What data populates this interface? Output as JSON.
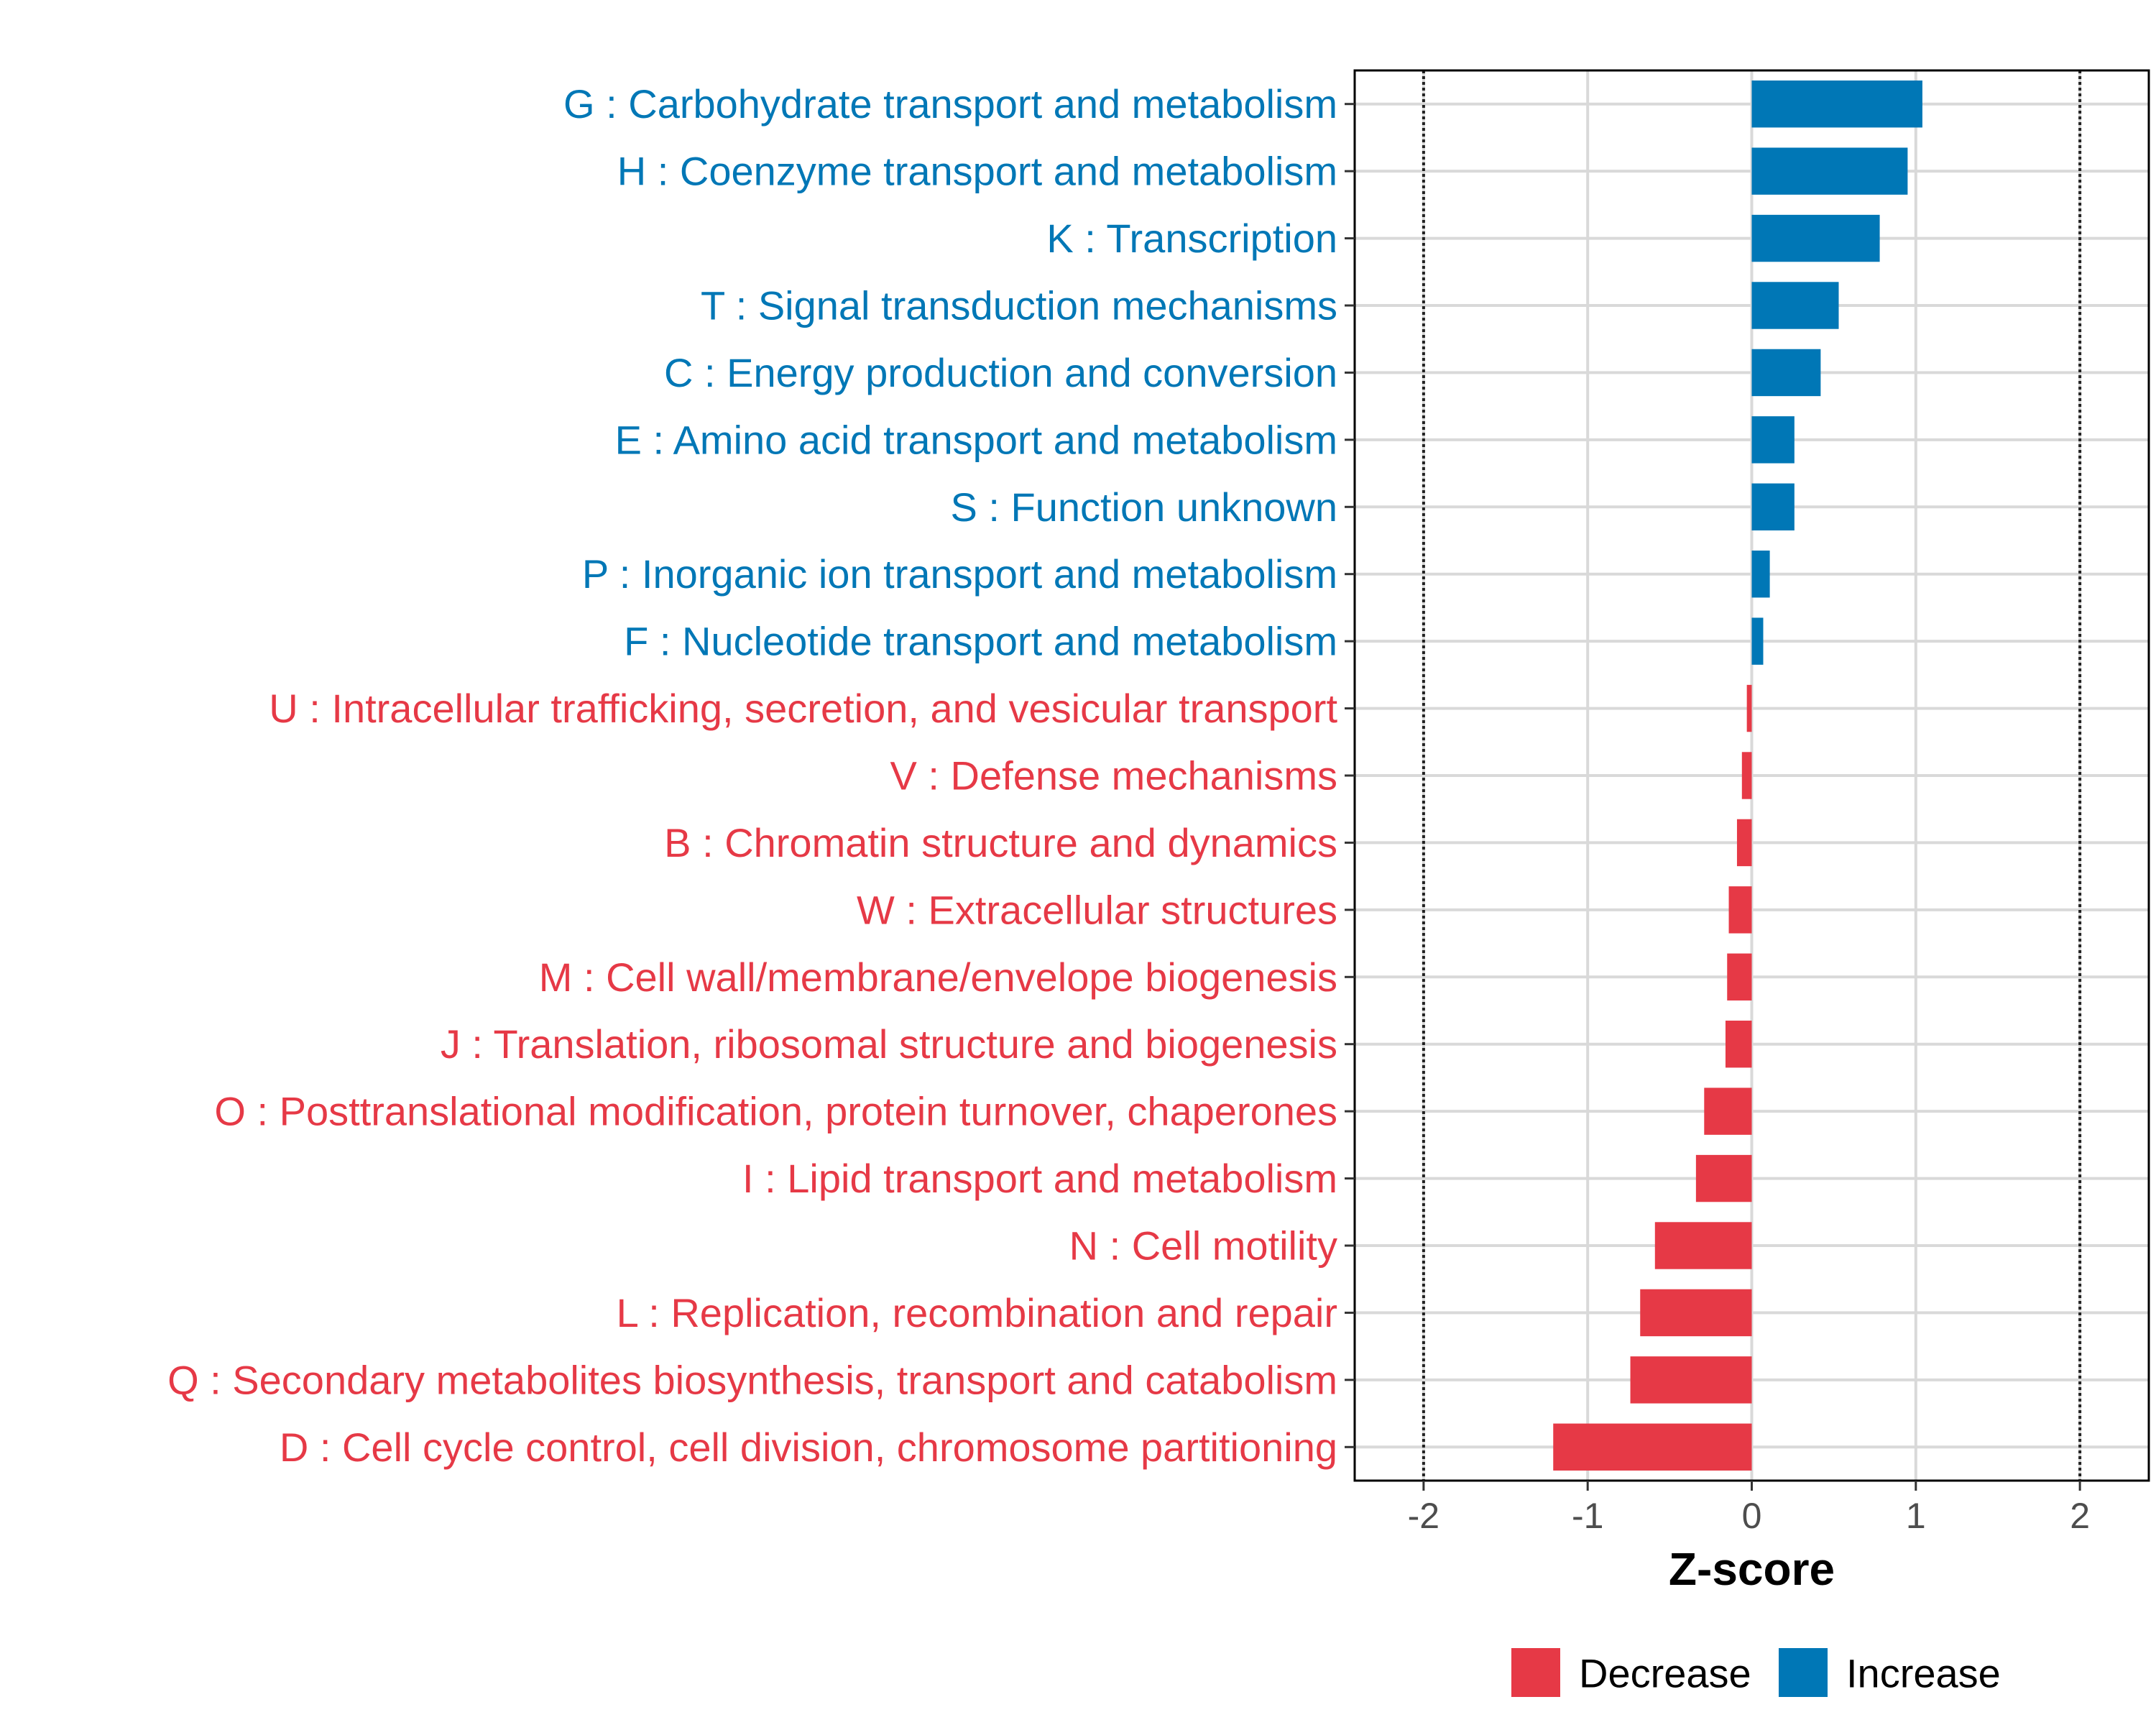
{
  "chart_data": {
    "type": "bar",
    "orientation": "horizontal",
    "title": "",
    "xlabel": "Z-score",
    "ylabel": "",
    "xlim": [
      -2.42,
      2.42
    ],
    "xticks": [
      -2,
      -1,
      0,
      1,
      2
    ],
    "xtick_labels": [
      "-2",
      "-1",
      "0",
      "1",
      "2"
    ],
    "reference_lines": [
      -2,
      2
    ],
    "grid": true,
    "categories": [
      "G : Carbohydrate transport and metabolism",
      "H : Coenzyme transport and metabolism",
      "K : Transcription",
      "T : Signal transduction mechanisms",
      "C : Energy production and conversion",
      "E : Amino acid transport and metabolism",
      "S : Function unknown",
      "P : Inorganic ion transport and metabolism",
      "F : Nucleotide transport and metabolism",
      "U : Intracellular trafficking, secretion, and vesicular transport",
      "V : Defense mechanisms",
      "B : Chromatin structure and dynamics",
      "W : Extracellular structures",
      "M : Cell wall/membrane/envelope biogenesis",
      "J : Translation, ribosomal structure and biogenesis",
      "O : Posttranslational modification, protein turnover, chaperones",
      "I : Lipid transport and metabolism",
      "N : Cell motility",
      "L : Replication, recombination and repair",
      "Q : Secondary metabolites biosynthesis, transport and catabolism",
      "D : Cell cycle control, cell division, chromosome partitioning"
    ],
    "values": [
      1.04,
      0.95,
      0.78,
      0.53,
      0.42,
      0.26,
      0.26,
      0.11,
      0.07,
      -0.03,
      -0.06,
      -0.09,
      -0.14,
      -0.15,
      -0.16,
      -0.29,
      -0.34,
      -0.59,
      -0.68,
      -0.74,
      -1.21
    ],
    "series_colors": {
      "Decrease": "#E63946",
      "Increase": "#0077B6"
    },
    "legend": {
      "position": "bottom",
      "entries": [
        "Decrease",
        "Increase"
      ]
    }
  }
}
